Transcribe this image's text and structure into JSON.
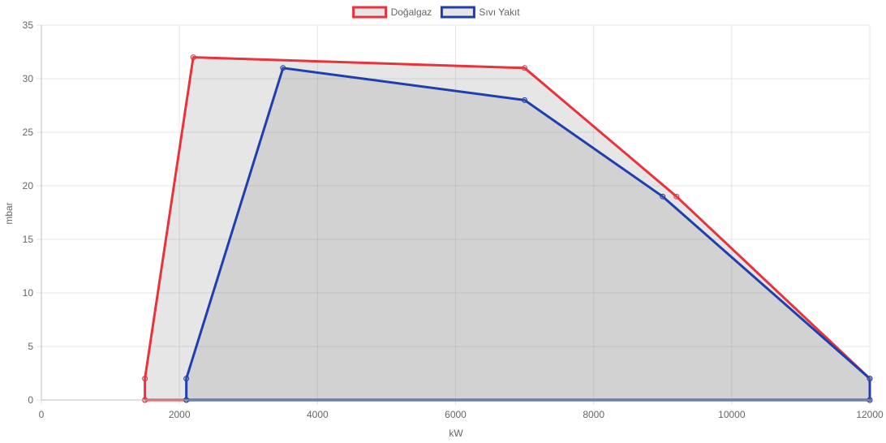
{
  "chart_data": {
    "type": "area",
    "xlabel": "kW",
    "ylabel": "mbar",
    "xlim": [
      0,
      12000
    ],
    "ylim": [
      0,
      35
    ],
    "xticks": [
      0,
      2000,
      4000,
      6000,
      8000,
      10000,
      12000
    ],
    "yticks": [
      0,
      5,
      10,
      15,
      20,
      25,
      30,
      35
    ],
    "grid": true,
    "legend_position": "top-center",
    "series": [
      {
        "name": "Doğalgaz",
        "color": "#e8333c",
        "fill": "rgba(128,128,128,0.2)",
        "points": [
          [
            1500,
            0
          ],
          [
            1500,
            2
          ],
          [
            2200,
            32
          ],
          [
            7000,
            31
          ],
          [
            9200,
            19
          ],
          [
            12000,
            2
          ],
          [
            12000,
            0
          ],
          [
            1500,
            0
          ]
        ]
      },
      {
        "name": "Sıvı Yakıt",
        "color": "#1f3fae",
        "fill": "rgba(128,128,128,0.2)",
        "points": [
          [
            2100,
            0
          ],
          [
            2100,
            2
          ],
          [
            3500,
            31
          ],
          [
            7000,
            28
          ],
          [
            9000,
            19
          ],
          [
            12000,
            2
          ],
          [
            12000,
            0
          ],
          [
            2100,
            0
          ]
        ]
      }
    ]
  }
}
